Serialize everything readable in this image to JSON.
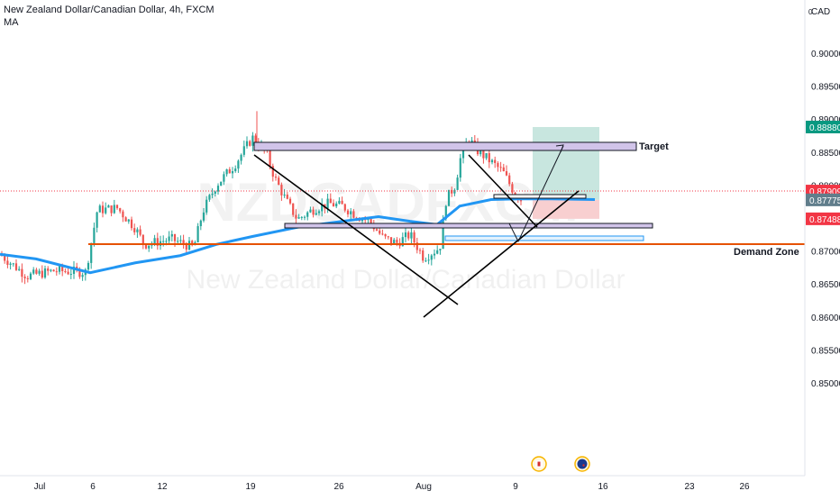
{
  "header": {
    "title": "New Zealand Dollar/Canadian Dollar, 4h, FXCM",
    "indicator": "MA"
  },
  "watermark": {
    "symbol": "NZDCADFXCM",
    "name": "New Zealand Dollar/Canadian Dollar"
  },
  "price_axis": {
    "currency": "CAD",
    "ticks": [
      "0.90000",
      "0.89500",
      "0.89000",
      "0.88500",
      "0.88000",
      "0.87500",
      "0.87000",
      "0.86500",
      "0.86000",
      "0.85500",
      "0.85000"
    ],
    "price_labels": [
      {
        "text": "0.88880",
        "value": 0.8888,
        "color": "#089981"
      },
      {
        "text": "0.87909",
        "value": 0.87909,
        "color": "#f23645"
      },
      {
        "text": "0.87775",
        "value": 0.87775,
        "color": "#607d8b"
      },
      {
        "text": "0.87488",
        "value": 0.87488,
        "color": "#f23645"
      }
    ]
  },
  "time_axis": {
    "labels": [
      "Jul",
      "6",
      "12",
      "19",
      "26",
      "Aug",
      "9",
      "16",
      "23",
      "26"
    ]
  },
  "event_icons": [
    "canada-flag-icon",
    "new-zealand-flag-icon"
  ],
  "colors": {
    "bull": "#26a69a",
    "bear": "#ef5350",
    "ma": "#2196f3",
    "demand_line": "#e65100",
    "target_rect": "#d1c4e9",
    "profit_zone": "#c8e6df",
    "loss_zone": "#f8cfd0",
    "trendline": "#000000"
  },
  "annotations": {
    "target_label": "Target",
    "demand_label": "Demand Zone"
  },
  "chart_data": {
    "type": "candlestick",
    "title": "New Zealand Dollar/Canadian Dollar, 4h, FXCM",
    "x_range": [
      "Jul",
      "26 Aug"
    ],
    "y_range": [
      0.8475,
      0.9035
    ],
    "price_scale": "right",
    "grid": false,
    "series": [
      {
        "name": "MA",
        "type": "line",
        "color": "#2196f3",
        "points": [
          [
            "Jul",
            0.8695
          ],
          [
            "6",
            0.8667
          ],
          [
            "12",
            0.869
          ],
          [
            "19",
            0.8725
          ],
          [
            "26",
            0.8745
          ],
          [
            "Aug",
            0.8728
          ],
          [
            "9",
            0.878
          ],
          [
            "16",
            0.8778
          ]
        ]
      }
    ],
    "levels": [
      {
        "label": "Target",
        "value": 0.8888
      },
      {
        "label": "Demand Zone",
        "value": 0.8762
      },
      {
        "value": 0.87909,
        "style": "dotted",
        "color": "#f23645"
      }
    ],
    "position": {
      "entry": 0.87775,
      "target": 0.8888,
      "stop": 0.87488
    },
    "candles_from_chart_approx": true
  }
}
